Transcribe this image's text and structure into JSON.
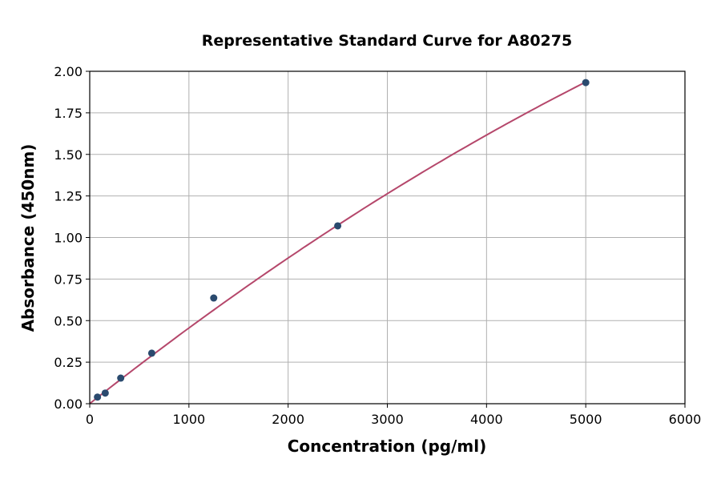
{
  "chart_data": {
    "type": "scatter",
    "title": "Representative Standard Curve for A80275",
    "xlabel": "Concentration (pg/ml)",
    "ylabel": "Absorbance (450nm)",
    "xlim": [
      0,
      6000
    ],
    "ylim": [
      0,
      2.0
    ],
    "xticks": [
      "0",
      "1000",
      "2000",
      "3000",
      "4000",
      "5000",
      "6000"
    ],
    "yticks": [
      "0.00",
      "0.25",
      "0.50",
      "0.75",
      "1.00",
      "1.25",
      "1.50",
      "1.75",
      "2.00"
    ],
    "grid": true,
    "points": [
      {
        "x": 78.125,
        "y": 0.04
      },
      {
        "x": 156.25,
        "y": 0.064
      },
      {
        "x": 312.5,
        "y": 0.154
      },
      {
        "x": 625,
        "y": 0.304
      },
      {
        "x": 1250,
        "y": 0.636
      },
      {
        "x": 2500,
        "y": 1.07
      },
      {
        "x": 5000,
        "y": 1.932
      }
    ],
    "point_color": "#2a4a6e",
    "curve_color": "#b5476b"
  }
}
